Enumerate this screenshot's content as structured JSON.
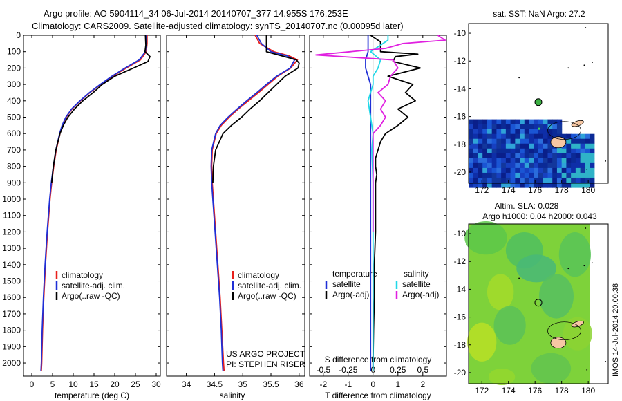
{
  "header": {
    "line1": "Argo profile: AO 5904114_34 06-Jul-2014 20140707_377 14.955S 176.253E",
    "line2": "Climatology: CARS2009. Satellite-adjusted climatology: synTS_20140707.nc (0.00095d later)"
  },
  "colors": {
    "climatology": "#e8201c",
    "satellite": "#1f2fd6",
    "argo": "#000000",
    "satellite_salinity": "#22d8e8",
    "argo_salinity": "#e020e0",
    "land": "#f6c7a3"
  },
  "chart_data": [
    {
      "type": "line",
      "xlabel": "temperature (deg C)",
      "ylabel": "",
      "xlim": [
        -2,
        31
      ],
      "ylim": [
        2080,
        0
      ],
      "xticks": [
        "0",
        "5",
        "10",
        "15",
        "20",
        "25",
        "30"
      ],
      "yticks": [
        "0",
        "100",
        "200",
        "300",
        "400",
        "500",
        "600",
        "700",
        "800",
        "900",
        "1000",
        "1100",
        "1200",
        "1300",
        "1400",
        "1500",
        "1600",
        "1700",
        "1800",
        "1900",
        "2000"
      ],
      "legend": {
        "placement": "lower-middle",
        "entries": [
          "climatology",
          "satellite-adj. clim.",
          "Argo(..raw -QC)"
        ]
      },
      "series": [
        {
          "name": "climatology",
          "depth": [
            0,
            50,
            100,
            150,
            200,
            250,
            300,
            350,
            400,
            450,
            500,
            550,
            600,
            700,
            800,
            900,
            1000,
            1200,
            1400,
            1600,
            1800,
            2000,
            2050
          ],
          "values": [
            27.8,
            27.8,
            27.6,
            26.2,
            22.8,
            19.5,
            16.6,
            14.0,
            11.7,
            9.7,
            8.3,
            7.4,
            6.8,
            5.9,
            5.3,
            4.8,
            4.4,
            3.8,
            3.3,
            2.9,
            2.6,
            2.4,
            2.3
          ]
        },
        {
          "name": "satellite-adj. clim.",
          "depth": [
            0,
            50,
            100,
            150,
            200,
            250,
            300,
            350,
            400,
            450,
            500,
            550,
            600,
            700,
            800,
            900,
            1000,
            1200,
            1400,
            1600,
            1800,
            2000,
            2050
          ],
          "values": [
            27.6,
            27.6,
            27.4,
            25.9,
            22.5,
            19.3,
            16.5,
            13.9,
            11.6,
            9.6,
            8.2,
            7.3,
            6.7,
            5.8,
            5.2,
            4.7,
            4.3,
            3.7,
            3.2,
            2.8,
            2.5,
            2.3,
            2.2
          ]
        },
        {
          "name": "Argo(..raw -QC)",
          "depth": [
            0,
            60,
            100,
            130,
            160,
            200,
            250,
            300,
            350,
            400,
            450,
            500,
            550,
            600,
            700,
            800,
            900
          ],
          "values": [
            27.4,
            27.5,
            27.3,
            28.5,
            28.0,
            24.5,
            20.0,
            17.0,
            14.8,
            12.3,
            10.3,
            8.7,
            7.6,
            6.8,
            5.8,
            5.2,
            4.8
          ]
        }
      ]
    },
    {
      "type": "line",
      "xlabel": "salinity",
      "ylabel": "",
      "xlim": [
        33.65,
        36.1
      ],
      "ylim": [
        2080,
        0
      ],
      "xticks": [
        "34",
        "34.5",
        "35",
        "35.5",
        "36"
      ],
      "legend": {
        "placement": "lower-right",
        "entries": [
          "climatology",
          "satellite-adj. clim.",
          "Argo(..raw -QC)"
        ]
      },
      "annotations": [
        "US ARGO PROJECT",
        "PI: STEPHEN RISER"
      ],
      "series": [
        {
          "name": "climatology",
          "depth": [
            0,
            50,
            100,
            125,
            150,
            200,
            250,
            300,
            350,
            400,
            450,
            500,
            550,
            600,
            700,
            800,
            900,
            1000,
            1200,
            1400,
            1600,
            1800,
            2000,
            2050
          ],
          "values": [
            35.22,
            35.3,
            35.55,
            35.82,
            35.97,
            35.85,
            35.62,
            35.45,
            35.28,
            35.1,
            34.92,
            34.76,
            34.62,
            34.53,
            34.46,
            34.45,
            34.46,
            34.48,
            34.52,
            34.56,
            34.6,
            34.63,
            34.66,
            34.67
          ]
        },
        {
          "name": "satellite-adj. clim.",
          "depth": [
            0,
            50,
            100,
            125,
            150,
            200,
            250,
            300,
            350,
            400,
            450,
            500,
            550,
            600,
            700,
            800,
            900,
            1000,
            1200,
            1400,
            1600,
            1800,
            2000,
            2050
          ],
          "values": [
            35.25,
            35.33,
            35.5,
            35.78,
            35.92,
            35.84,
            35.6,
            35.42,
            35.25,
            35.07,
            34.9,
            34.74,
            34.6,
            34.52,
            34.45,
            34.44,
            34.45,
            34.47,
            34.51,
            34.55,
            34.59,
            34.62,
            34.64,
            34.65
          ]
        },
        {
          "name": "Argo(..raw -QC)",
          "depth": [
            0,
            100,
            150,
            170,
            200,
            250,
            300,
            350,
            400,
            450,
            500,
            550,
            600,
            700,
            800,
            900
          ],
          "values": [
            35.42,
            35.42,
            35.95,
            36.0,
            35.98,
            35.75,
            35.6,
            35.45,
            35.3,
            35.13,
            34.98,
            34.8,
            34.65,
            34.52,
            34.48,
            34.47
          ]
        }
      ]
    },
    {
      "type": "line",
      "xlabel": "T difference from climatology",
      "xlabel_top": "S difference from climatology",
      "ylabel": "",
      "xlim": [
        -2.55,
        2.95
      ],
      "ylim": [
        2080,
        0
      ],
      "xticks": [
        "-2",
        "-1",
        "0",
        "1",
        "2"
      ],
      "xticks_top": [
        "-0.5",
        "-0.25",
        "0",
        "0.25",
        "0.5"
      ],
      "legend": {
        "placement": "lower-middle",
        "temperature_title": "temperature",
        "salinity_title": "salinity",
        "entries": [
          "satellite",
          "Argo(-adj)",
          "satellite",
          "Argo(-adj)"
        ]
      },
      "series": [
        {
          "name": "temperature satellite",
          "depth": [
            0,
            50,
            100,
            150,
            200,
            300,
            400,
            500,
            700,
            1000,
            1500,
            2000,
            2050
          ],
          "values": [
            -0.2,
            -0.2,
            -0.2,
            -0.3,
            -0.3,
            -0.1,
            -0.1,
            -0.1,
            -0.1,
            -0.1,
            -0.1,
            -0.1,
            -0.1
          ]
        },
        {
          "name": "temperature Argo(-adj)",
          "depth": [
            0,
            40,
            100,
            115,
            130,
            160,
            200,
            250,
            300,
            350,
            400,
            450,
            500,
            550,
            600,
            650,
            700,
            750,
            800,
            850,
            900,
            1000,
            1200,
            1400,
            1600,
            1800,
            2000,
            2050
          ],
          "values": [
            -0.1,
            0.3,
            0.3,
            1.8,
            0.9,
            0.8,
            1.9,
            0.6,
            1.6,
            1.3,
            1.7,
            1.0,
            1.4,
            1.0,
            0.5,
            0.3,
            0.2,
            0.1,
            0.1,
            0.15,
            0.1,
            0.1,
            0.1,
            0.05,
            0.05,
            0.02,
            0.0,
            0.0
          ]
        },
        {
          "name": "salinity satellite",
          "depth": [
            0,
            30,
            60,
            100,
            150,
            200,
            250,
            300,
            400,
            500,
            600,
            700,
            900,
            1200,
            1600,
            2000,
            2050
          ],
          "values": [
            0.6,
            0.6,
            0.3,
            -0.1,
            0.3,
            0.2,
            0.0,
            0.0,
            -0.2,
            -0.1,
            0.0,
            -0.05,
            0.0,
            0.0,
            0.0,
            0.0,
            0.0
          ]
        },
        {
          "name": "salinity Argo(-adj)",
          "depth": [
            0,
            30,
            50,
            80,
            120,
            150,
            200,
            250,
            300,
            350,
            400,
            450,
            500,
            550,
            600,
            700,
            800,
            900,
            1000,
            1100,
            1200
          ],
          "values": [
            2.6,
            2.9,
            1.2,
            0.5,
            -2.3,
            0.8,
            1.0,
            0.7,
            0.6,
            0.2,
            0.5,
            0.3,
            0.5,
            0.3,
            0.0,
            0.0,
            0.0,
            0.0,
            0.0,
            0.0,
            0.0
          ]
        }
      ]
    },
    {
      "type": "heatmap",
      "title": "sat. SST: NaN Argo: 27.2",
      "xlim": [
        171,
        181.5
      ],
      "ylim": [
        -20.8,
        -9.3
      ],
      "xticks": [
        "172",
        "174",
        "176",
        "178",
        "180"
      ],
      "yticks": [
        "-10",
        "-12",
        "-14",
        "-16",
        "-18",
        "-20"
      ],
      "argo_position": {
        "lon": 176.25,
        "lat": -14.96
      }
    },
    {
      "type": "heatmap",
      "title": "Altim. SLA: 0.028",
      "subtitle": "Argo h1000: 0.04 h2000: 0.043",
      "xlim": [
        171,
        181.5
      ],
      "ylim": [
        -20.8,
        -9.3
      ],
      "xticks": [
        "172",
        "174",
        "176",
        "178",
        "180"
      ],
      "yticks": [
        "-10",
        "-12",
        "-14",
        "-16",
        "-18",
        "-20"
      ],
      "argo_position": {
        "lon": 176.25,
        "lat": -14.96
      }
    }
  ],
  "footer": {
    "stamp": "IMOS 14-Jul-2014 20:00:38"
  }
}
